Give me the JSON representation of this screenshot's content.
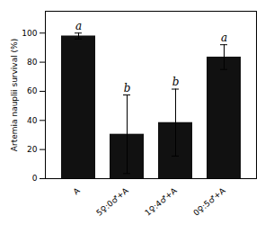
{
  "chart_data": {
    "type": "bar",
    "categories": [
      "A",
      "5♀:0♂+A",
      "1♀:4♂+A",
      "0♀:5♂+A"
    ],
    "values": [
      98.0,
      30.5,
      38.5,
      83.5
    ],
    "errors": [
      2.0,
      27.0,
      23.0,
      8.5
    ],
    "annotations": [
      "a",
      "b",
      "b",
      "a"
    ],
    "color": "#111111",
    "ylabel": "Artemia nauplii survival (%)",
    "ylim": [
      0,
      115
    ],
    "yticks": [
      0,
      20,
      40,
      60,
      80,
      100
    ],
    "grid": false
  }
}
